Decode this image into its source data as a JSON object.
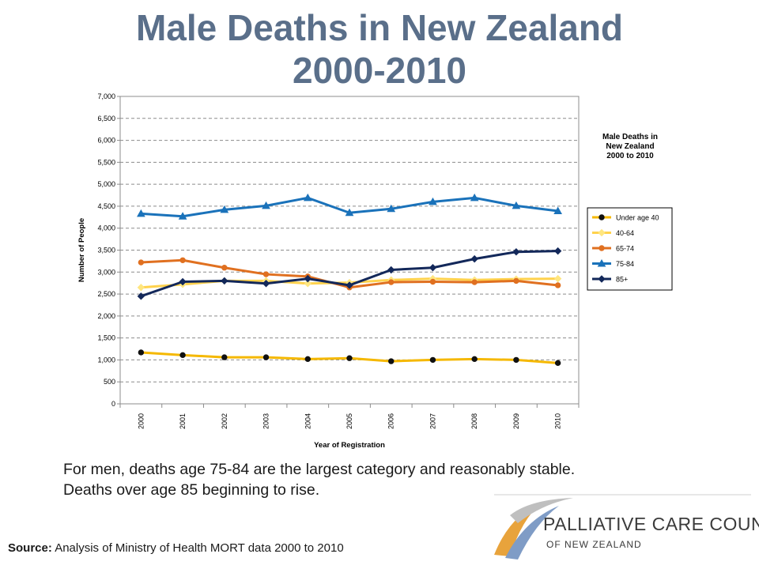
{
  "slide": {
    "title_line1": "Male Deaths in New Zealand",
    "title_line2": "2000-2010",
    "caption_line1": "For men, deaths age 75-84 are the largest category and reasonably stable.",
    "caption_line2": "Deaths over age 85 beginning to rise.",
    "source_label": "Source:",
    "source_text": " Analysis of Ministry of Health MORT data 2000 to 2010",
    "logo": {
      "line1": "PALLIATIVE CARE COUNCIL",
      "line2": "OF NEW ZEALAND",
      "icon": "swoosh-logo-icon",
      "colors": {
        "gold": "#e8a33c",
        "blue": "#5b7fae",
        "gray": "#bfbfbf"
      }
    }
  },
  "chart_data": {
    "type": "line",
    "title": "Male Deaths in New Zealand 2000 to 2010",
    "title_lines": [
      "Male Deaths in",
      "New Zealand",
      "2000 to 2010"
    ],
    "xlabel": "Year of Registration",
    "ylabel": "Number of People",
    "categories": [
      "2000",
      "2001",
      "2002",
      "2003",
      "2004",
      "2005",
      "2006",
      "2007",
      "2008",
      "2009",
      "2010"
    ],
    "ylim": [
      0,
      7000
    ],
    "yticks": [
      0,
      500,
      1000,
      1500,
      2000,
      2500,
      3000,
      3500,
      4000,
      4500,
      5000,
      5500,
      6000,
      6500,
      7000
    ],
    "ytick_labels": [
      "0",
      "500",
      "1,000",
      "1,500",
      "2,000",
      "2,500",
      "3,000",
      "3,500",
      "4,000",
      "4,500",
      "5,000",
      "5,500",
      "6,000",
      "6,500",
      "7,000"
    ],
    "grid": "horizontal dashed",
    "legend_position": "right",
    "series": [
      {
        "name": "Under age 40",
        "color": "#f5b800",
        "marker": "circle",
        "marker_color": "#111111",
        "values": [
          1170,
          1110,
          1060,
          1060,
          1020,
          1040,
          970,
          1000,
          1020,
          1000,
          930
        ]
      },
      {
        "name": "40-64",
        "color": "#ffd24d",
        "marker": "diamond",
        "marker_color": "#ffe680",
        "values": [
          2650,
          2720,
          2800,
          2800,
          2740,
          2760,
          2820,
          2850,
          2820,
          2840,
          2850
        ]
      },
      {
        "name": "65-74",
        "color": "#e07020",
        "marker": "circle",
        "marker_color": "#e07020",
        "values": [
          3220,
          3270,
          3100,
          2950,
          2900,
          2650,
          2770,
          2780,
          2770,
          2800,
          2700
        ]
      },
      {
        "name": "75-84",
        "color": "#1a72ba",
        "marker": "triangle",
        "marker_color": "#1a72ba",
        "values": [
          4330,
          4270,
          4420,
          4510,
          4690,
          4350,
          4440,
          4600,
          4690,
          4510,
          4390
        ]
      },
      {
        "name": "85+",
        "color": "#13285a",
        "marker": "diamond",
        "marker_color": "#13285a",
        "values": [
          2450,
          2780,
          2800,
          2740,
          2850,
          2700,
          3050,
          3100,
          3300,
          3460,
          3480
        ]
      }
    ]
  }
}
